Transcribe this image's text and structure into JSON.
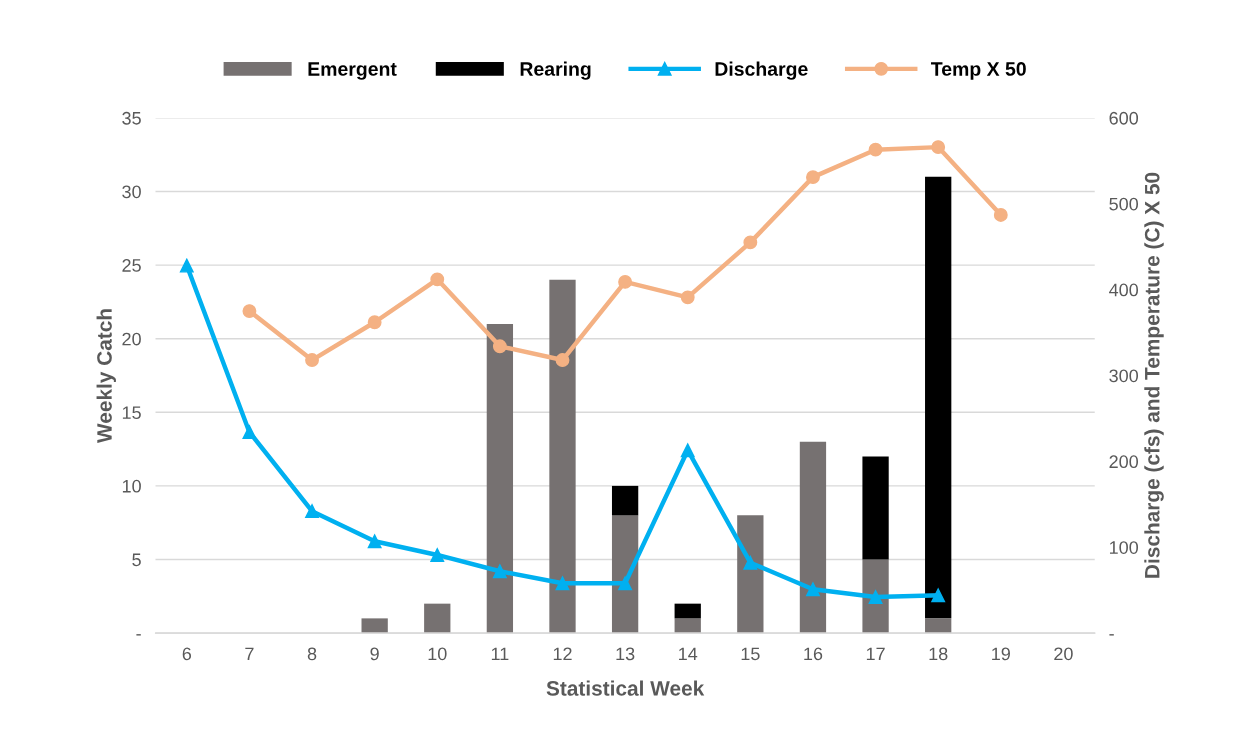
{
  "chart_data": {
    "type": "bar",
    "stacked": true,
    "xlabel": "Statistical Week",
    "ylabel": "Weekly Catch",
    "y2label": "Discharge (cfs) and Temperature (C) X 50",
    "categories": [
      "6",
      "7",
      "8",
      "9",
      "10",
      "11",
      "12",
      "13",
      "14",
      "15",
      "16",
      "17",
      "18",
      "19",
      "20"
    ],
    "series": [
      {
        "name": "Emergent",
        "color": "#767171",
        "values": [
          0,
          0,
          0,
          1,
          2,
          21,
          24,
          8,
          1,
          8,
          13,
          5,
          1,
          0,
          0
        ]
      },
      {
        "name": "Rearing",
        "color": "#000000",
        "values": [
          0,
          0,
          0,
          0,
          0,
          0,
          0,
          2,
          1,
          0,
          0,
          7,
          30,
          0,
          0
        ]
      },
      {
        "name": "Discharge",
        "type": "line",
        "axis": "y2",
        "marker": "triangle",
        "color": "#00b0f0",
        "values": [
          428,
          234,
          142,
          107,
          91,
          72,
          58,
          58,
          213,
          82,
          51,
          42,
          44,
          null,
          null
        ]
      },
      {
        "name": "Temp X 50",
        "type": "line",
        "axis": "y2",
        "marker": "circle",
        "color": "#f4b183",
        "values": [
          null,
          375,
          318,
          362,
          412,
          334,
          318,
          409,
          391,
          455,
          531,
          563,
          566,
          487,
          null
        ]
      }
    ],
    "ylim": [
      0,
      35
    ],
    "yticks": [
      {
        "value": 0,
        "label": "-"
      },
      5,
      10,
      15,
      20,
      25,
      30,
      35
    ],
    "y2lim": [
      0,
      600
    ],
    "y2ticks": [
      {
        "value": 0,
        "label": "-"
      },
      100,
      200,
      300,
      400,
      500,
      600
    ],
    "grid": "y",
    "legend": "top",
    "line_style": "solid"
  }
}
